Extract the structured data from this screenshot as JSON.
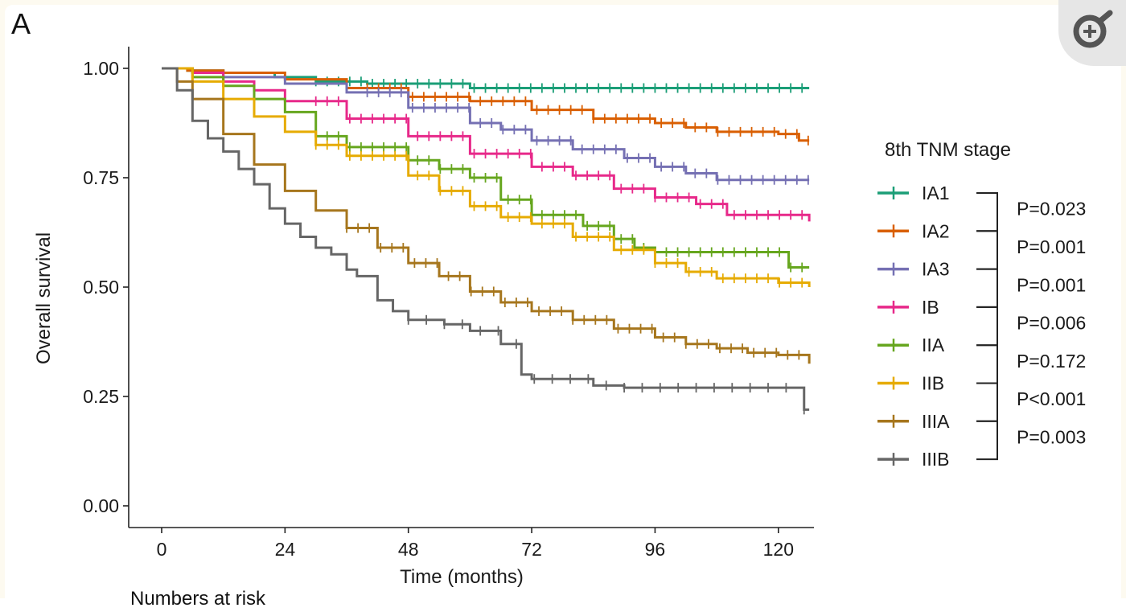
{
  "figure": {
    "panel_label": "A",
    "below_text": "Numbers at risk"
  },
  "ui": {
    "zoom_icon": "zoom-in-icon",
    "background": "#fdfaf0"
  },
  "chart_data": {
    "type": "line",
    "subtype": "kaplan-meier-step",
    "title": "",
    "xlabel": "Time (months)",
    "ylabel": "Overall survival",
    "xlim": [
      -7,
      126
    ],
    "ylim": [
      0,
      1
    ],
    "xticks": [
      0,
      24,
      48,
      72,
      96,
      120
    ],
    "yticks": [
      0.0,
      0.25,
      0.5,
      0.75,
      1.0
    ],
    "ytick_labels": [
      "0.00",
      "0.25",
      "0.50",
      "0.75",
      "1.00"
    ],
    "grid": false,
    "legend": {
      "title": "8th TNM stage",
      "placement": "right"
    },
    "pvalues": [
      "P=0.023",
      "P=0.001",
      "P=0.001",
      "P=0.006",
      "P=0.172",
      "P<0.001",
      "P=0.003"
    ],
    "series": [
      {
        "name": "IA1",
        "color": "#1b9e77",
        "x": [
          0,
          5,
          12,
          22,
          30,
          40,
          60,
          80,
          100,
          120,
          126
        ],
        "y": [
          1.0,
          0.995,
          0.99,
          0.98,
          0.97,
          0.965,
          0.955,
          0.955,
          0.955,
          0.955,
          0.955
        ],
        "censor_start": 30
      },
      {
        "name": "IA2",
        "color": "#d95f02",
        "x": [
          0,
          5,
          12,
          24,
          36,
          48,
          60,
          72,
          84,
          96,
          102,
          108,
          120,
          124,
          126
        ],
        "y": [
          1.0,
          0.995,
          0.99,
          0.975,
          0.955,
          0.935,
          0.925,
          0.905,
          0.885,
          0.875,
          0.865,
          0.855,
          0.85,
          0.835,
          0.835
        ],
        "censor_start": 40
      },
      {
        "name": "IA3",
        "color": "#7570b3",
        "x": [
          0,
          6,
          12,
          24,
          36,
          48,
          60,
          66,
          72,
          80,
          90,
          96,
          102,
          108,
          120,
          126
        ],
        "y": [
          1.0,
          0.99,
          0.98,
          0.965,
          0.945,
          0.91,
          0.875,
          0.86,
          0.835,
          0.815,
          0.795,
          0.775,
          0.76,
          0.745,
          0.745,
          0.745
        ],
        "censor_start": 40
      },
      {
        "name": "IB",
        "color": "#e7298a",
        "x": [
          0,
          6,
          12,
          18,
          24,
          36,
          48,
          60,
          72,
          80,
          88,
          96,
          104,
          110,
          120,
          126
        ],
        "y": [
          1.0,
          0.99,
          0.97,
          0.95,
          0.925,
          0.885,
          0.845,
          0.805,
          0.775,
          0.755,
          0.725,
          0.705,
          0.69,
          0.665,
          0.665,
          0.65
        ],
        "censor_start": 30
      },
      {
        "name": "IIA",
        "color": "#66a61e",
        "x": [
          0,
          6,
          12,
          18,
          24,
          30,
          36,
          48,
          54,
          60,
          66,
          72,
          82,
          88,
          92,
          96,
          110,
          120,
          122,
          126
        ],
        "y": [
          1.0,
          0.98,
          0.96,
          0.93,
          0.9,
          0.845,
          0.82,
          0.79,
          0.77,
          0.75,
          0.7,
          0.665,
          0.64,
          0.61,
          0.59,
          0.58,
          0.58,
          0.58,
          0.545,
          0.545
        ],
        "censor_start": 30
      },
      {
        "name": "IIB",
        "color": "#e6ab02",
        "x": [
          0,
          6,
          12,
          18,
          24,
          30,
          36,
          48,
          54,
          60,
          66,
          72,
          80,
          88,
          96,
          102,
          108,
          120,
          126
        ],
        "y": [
          1.0,
          0.97,
          0.93,
          0.89,
          0.855,
          0.825,
          0.8,
          0.755,
          0.72,
          0.685,
          0.66,
          0.645,
          0.615,
          0.585,
          0.555,
          0.535,
          0.52,
          0.51,
          0.5
        ],
        "censor_start": 30
      },
      {
        "name": "IIIA",
        "color": "#a6761d",
        "x": [
          0,
          3,
          6,
          12,
          18,
          24,
          30,
          36,
          42,
          48,
          54,
          60,
          66,
          72,
          80,
          88,
          96,
          102,
          108,
          114,
          120,
          126
        ],
        "y": [
          1.0,
          0.97,
          0.93,
          0.85,
          0.78,
          0.72,
          0.675,
          0.635,
          0.59,
          0.555,
          0.525,
          0.49,
          0.465,
          0.445,
          0.425,
          0.405,
          0.385,
          0.37,
          0.36,
          0.35,
          0.345,
          0.325
        ],
        "censor_start": 36
      },
      {
        "name": "IIIB",
        "color": "#666666",
        "x": [
          0,
          3,
          6,
          9,
          12,
          15,
          18,
          21,
          24,
          27,
          30,
          33,
          36,
          38,
          42,
          45,
          48,
          55,
          60,
          66,
          70,
          72,
          78,
          84,
          90,
          100,
          120,
          125,
          126
        ],
        "y": [
          1.0,
          0.95,
          0.88,
          0.84,
          0.81,
          0.77,
          0.735,
          0.68,
          0.645,
          0.615,
          0.59,
          0.575,
          0.54,
          0.525,
          0.47,
          0.445,
          0.425,
          0.415,
          0.4,
          0.37,
          0.3,
          0.29,
          0.29,
          0.275,
          0.27,
          0.27,
          0.27,
          0.22,
          0.22
        ],
        "censor_start": 48
      }
    ]
  }
}
